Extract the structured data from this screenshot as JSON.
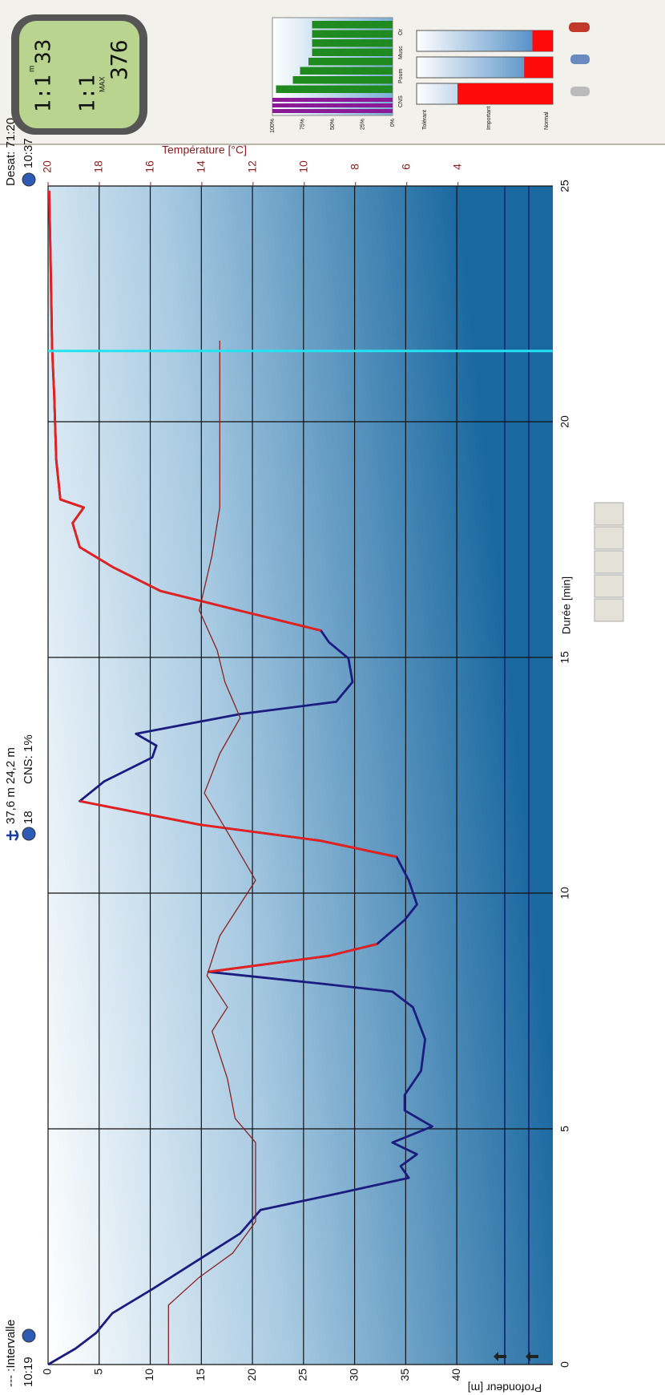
{
  "toolbar": {
    "interval_label": "--- :Intervalle",
    "interval_time": "10:19",
    "max_depth": "37,6 m",
    "max_depth_extra": "18",
    "avg_depth": "24,2 m",
    "cns": "CNS: 1%",
    "desat": "Desat: 71:20",
    "end_time": "10:37"
  },
  "chart_data": {
    "type": "line",
    "xlabel": "Durée [min]",
    "ylabel": "Profondeur [m]",
    "y2label": "Température [°C]",
    "xlim": [
      0,
      25
    ],
    "xticks": [
      0,
      5,
      10,
      15,
      20,
      25
    ],
    "ylim": [
      0,
      49.4
    ],
    "yticks": [
      0,
      5,
      10,
      15,
      20,
      25,
      30,
      35,
      40
    ],
    "y2lim": [
      20,
      0.3
    ],
    "y2ticks": [
      4,
      6,
      8,
      10,
      12,
      14,
      16,
      18,
      20
    ],
    "grid": true,
    "cursor": 21.5,
    "cursor_color": "#22e3f2",
    "x": [
      0,
      0.34,
      0.67,
      1.09,
      1.6,
      2.19,
      2.78,
      3.28,
      3.62,
      3.96,
      4.21,
      4.46,
      4.71,
      5.05,
      5.39,
      5.72,
      6.23,
      6.9,
      7.58,
      7.91,
      8.08,
      8.33,
      8.67,
      8.92,
      9.43,
      9.76,
      10.27,
      10.77,
      11.11,
      11.45,
      11.95,
      12.37,
      12.88,
      13.13,
      13.38,
      13.8,
      14.06,
      14.48,
      14.98,
      15.32,
      15.57,
      15.99,
      16.41,
      16.92,
      17.34,
      17.85,
      18.18,
      18.35,
      19.19,
      20.54,
      21.55,
      23.91,
      24.9
    ],
    "series": [
      {
        "color": "#1c1c80",
        "values": [
          0,
          2.7,
          4.7,
          6.3,
          10.2,
          14.5,
          18.8,
          20.8,
          28.2,
          35.3,
          34.5,
          36.1,
          33.7,
          37.6,
          34.9,
          34.9,
          36.5,
          36.9,
          35.7,
          33.7,
          26.7,
          15.7,
          27.5,
          32.2,
          34.9,
          36.1,
          35.3,
          34.1,
          26.7,
          14.9,
          3.1,
          5.5,
          10.2,
          10.6,
          8.6,
          18.8,
          28.2,
          29.8,
          29.4,
          27.5,
          26.7,
          18.8,
          11,
          6.3,
          3.1,
          2.4,
          3.5,
          1.2,
          0.8,
          0.6,
          0.4,
          0.2,
          0.1
        ]
      },
      {
        "color": "#e8201c",
        "values": [
          null,
          null,
          null,
          null,
          null,
          null,
          null,
          null,
          null,
          null,
          null,
          null,
          null,
          null,
          null,
          null,
          null,
          null,
          null,
          null,
          null,
          15.7,
          27.5,
          32.2,
          null,
          null,
          null,
          34.1,
          26.7,
          14.9,
          3.1,
          null,
          null,
          null,
          null,
          null,
          null,
          null,
          null,
          null,
          26.7,
          18.8,
          11,
          6.3,
          3.1,
          2.4,
          3.5,
          1.2,
          0.8,
          0.6,
          0.4,
          0.2,
          0.1
        ]
      },
      {
        "color": "#8b2020",
        "axis": "y2",
        "x": [
          0,
          1.26,
          1.85,
          2.36,
          3.03,
          4.71,
          5.22,
          6.06,
          7.07,
          7.58,
          8.25,
          9.09,
          10.27,
          11.11,
          12.12,
          12.96,
          13.72,
          14.48,
          15.15,
          16,
          17.17,
          18.18,
          21.72
        ],
        "values": [
          15.3,
          15.3,
          14.1,
          12.8,
          11.9,
          11.9,
          12.7,
          13,
          13.6,
          13,
          13.8,
          13.3,
          11.9,
          12.8,
          13.9,
          13.3,
          12.5,
          13.1,
          13.4,
          14.1,
          13.6,
          13.3,
          13.3
        ]
      }
    ]
  },
  "lcd": {
    "texts": [
      "1:1",
      "33",
      "m",
      "376",
      "MAX",
      "1:1"
    ]
  },
  "saturation": {
    "type": "bar",
    "ylim": [
      0,
      100
    ],
    "yticks": [
      {
        "value": 0,
        "label": "0%"
      },
      {
        "value": 25,
        "label": "25%"
      },
      {
        "value": 50,
        "label": "50%"
      },
      {
        "value": 75,
        "label": "75%"
      },
      {
        "value": 100,
        "label": "100%"
      }
    ],
    "labels": [
      "CNS",
      "Poum",
      "Musc",
      "Or"
    ],
    "series": [
      {
        "color": "#8a1a96",
        "values": [
          100,
          100,
          100
        ]
      },
      {
        "color": "#1f8a1f",
        "values": [
          97,
          83,
          77,
          70,
          67,
          67,
          67,
          67
        ]
      }
    ]
  },
  "tissues": {
    "type": "bar",
    "ylim": [
      0,
      100
    ],
    "color": "#ff0a0a",
    "values": [
      70,
      21,
      15
    ],
    "labels": [
      "Tolérant",
      "Important",
      "Normal"
    ]
  }
}
